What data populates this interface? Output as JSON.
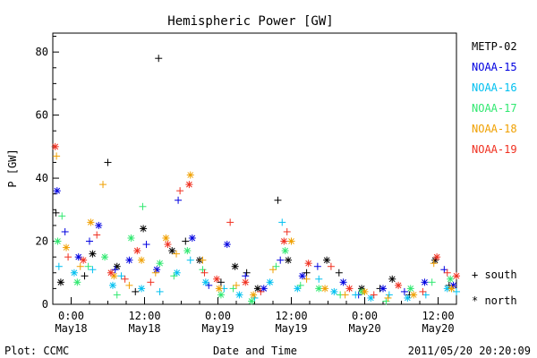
{
  "chart_data": {
    "type": "scatter",
    "title": "Hemispheric Power [GW]",
    "ylabel": "P [GW]",
    "xlabel": "Date and Time",
    "x_unit": "hours since 2011-05-18 00:00 UT",
    "xlim": [
      -3,
      63
    ],
    "ylim": [
      0,
      86
    ],
    "yticks": [
      0,
      20,
      40,
      60,
      80
    ],
    "xticks": [
      {
        "x": 0,
        "time": "0:00",
        "date": "May18"
      },
      {
        "x": 12,
        "time": "12:00",
        "date": "May18"
      },
      {
        "x": 24,
        "time": "0:00",
        "date": "May19"
      },
      {
        "x": 36,
        "time": "12:00",
        "date": "May19"
      },
      {
        "x": 48,
        "time": "0:00",
        "date": "May20"
      },
      {
        "x": 60,
        "time": "12:00",
        "date": "May20"
      }
    ],
    "legend_position": "right",
    "series": [
      {
        "name": "METP-02",
        "color": "#000000",
        "points": [
          [
            -2.5,
            29
          ],
          [
            -1.7,
            7
          ],
          [
            2.2,
            9
          ],
          [
            3.5,
            16
          ],
          [
            6.0,
            45
          ],
          [
            7.5,
            12
          ],
          [
            10.5,
            4
          ],
          [
            11.8,
            24
          ],
          [
            14.3,
            78
          ],
          [
            16.5,
            17
          ],
          [
            18.7,
            20
          ],
          [
            21.0,
            14
          ],
          [
            24.5,
            7
          ],
          [
            26.8,
            12
          ],
          [
            28.7,
            10
          ],
          [
            30.5,
            5
          ],
          [
            33.8,
            33
          ],
          [
            35.5,
            14
          ],
          [
            38.5,
            10
          ],
          [
            41.8,
            14
          ],
          [
            43.8,
            10
          ],
          [
            47.5,
            5
          ],
          [
            50.5,
            5
          ],
          [
            52.5,
            8
          ],
          [
            55.3,
            3
          ],
          [
            59.5,
            14
          ],
          [
            61.8,
            6
          ]
        ]
      },
      {
        "name": "NOAA-15",
        "color": "#0000e0",
        "points": [
          [
            -2.3,
            36
          ],
          [
            -1.0,
            23
          ],
          [
            1.2,
            15
          ],
          [
            3.0,
            20
          ],
          [
            4.5,
            25
          ],
          [
            7.2,
            11
          ],
          [
            9.5,
            14
          ],
          [
            12.3,
            19
          ],
          [
            14.0,
            11
          ],
          [
            17.5,
            33
          ],
          [
            19.8,
            21
          ],
          [
            22.5,
            6
          ],
          [
            25.5,
            19
          ],
          [
            28.5,
            9
          ],
          [
            31.5,
            5
          ],
          [
            34.2,
            14
          ],
          [
            37.8,
            9
          ],
          [
            40.3,
            12
          ],
          [
            44.5,
            7
          ],
          [
            47.0,
            3
          ],
          [
            51.0,
            5
          ],
          [
            54.5,
            4
          ],
          [
            57.8,
            7
          ],
          [
            61.0,
            11
          ],
          [
            62.5,
            6
          ]
        ]
      },
      {
        "name": "NOAA-16",
        "color": "#00c0f0",
        "points": [
          [
            -2.0,
            12
          ],
          [
            0.5,
            10
          ],
          [
            3.5,
            11
          ],
          [
            6.8,
            6
          ],
          [
            8.2,
            9
          ],
          [
            11.5,
            5
          ],
          [
            14.5,
            4
          ],
          [
            17.3,
            10
          ],
          [
            19.5,
            14
          ],
          [
            22.0,
            7
          ],
          [
            25.0,
            5
          ],
          [
            27.5,
            3
          ],
          [
            30.0,
            2
          ],
          [
            32.5,
            7
          ],
          [
            34.5,
            26
          ],
          [
            37.0,
            5
          ],
          [
            40.5,
            8
          ],
          [
            43.0,
            4
          ],
          [
            46.5,
            3
          ],
          [
            49.0,
            2
          ],
          [
            52.0,
            3
          ],
          [
            55.0,
            2
          ],
          [
            58.0,
            3
          ],
          [
            61.5,
            5
          ],
          [
            63.0,
            4
          ]
        ]
      },
      {
        "name": "NOAA-17",
        "color": "#30e870",
        "points": [
          [
            -2.2,
            20
          ],
          [
            -1.5,
            28
          ],
          [
            1.0,
            7
          ],
          [
            2.8,
            12
          ],
          [
            5.5,
            15
          ],
          [
            7.5,
            3
          ],
          [
            9.8,
            21
          ],
          [
            11.7,
            31
          ],
          [
            14.5,
            13
          ],
          [
            16.8,
            9
          ],
          [
            19.0,
            17
          ],
          [
            21.5,
            11
          ],
          [
            24.5,
            3
          ],
          [
            26.5,
            5
          ],
          [
            29.5,
            1
          ],
          [
            33.5,
            12
          ],
          [
            35.0,
            17
          ],
          [
            37.5,
            6
          ],
          [
            40.5,
            5
          ],
          [
            44.0,
            3
          ],
          [
            47.5,
            4
          ],
          [
            51.5,
            1
          ],
          [
            55.5,
            5
          ],
          [
            59.0,
            7
          ],
          [
            62.0,
            8
          ]
        ]
      },
      {
        "name": "NOAA-18",
        "color": "#f0a000",
        "points": [
          [
            -2.4,
            47
          ],
          [
            -0.8,
            18
          ],
          [
            1.5,
            12
          ],
          [
            3.2,
            26
          ],
          [
            5.2,
            38
          ],
          [
            7.0,
            9
          ],
          [
            9.5,
            6
          ],
          [
            11.5,
            14
          ],
          [
            13.8,
            10
          ],
          [
            15.5,
            21
          ],
          [
            17.2,
            16
          ],
          [
            19.5,
            41
          ],
          [
            21.5,
            14
          ],
          [
            24.2,
            5
          ],
          [
            27.0,
            6
          ],
          [
            29.8,
            3
          ],
          [
            33.0,
            11
          ],
          [
            36.0,
            20
          ],
          [
            38.5,
            8
          ],
          [
            41.5,
            5
          ],
          [
            44.8,
            3
          ],
          [
            48.0,
            4
          ],
          [
            51.8,
            2
          ],
          [
            56.0,
            3
          ],
          [
            59.3,
            13
          ],
          [
            62.2,
            5
          ]
        ]
      },
      {
        "name": "NOAA-19",
        "color": "#f03020",
        "points": [
          [
            -2.6,
            50
          ],
          [
            -0.5,
            15
          ],
          [
            2.0,
            14
          ],
          [
            4.2,
            22
          ],
          [
            6.5,
            10
          ],
          [
            8.8,
            8
          ],
          [
            10.8,
            17
          ],
          [
            13.0,
            7
          ],
          [
            15.8,
            19
          ],
          [
            17.8,
            36
          ],
          [
            19.3,
            38
          ],
          [
            21.8,
            10
          ],
          [
            23.8,
            8
          ],
          [
            26.0,
            26
          ],
          [
            28.5,
            7
          ],
          [
            31.0,
            4
          ],
          [
            34.8,
            20
          ],
          [
            35.3,
            23
          ],
          [
            38.8,
            13
          ],
          [
            42.5,
            12
          ],
          [
            45.5,
            5
          ],
          [
            49.5,
            3
          ],
          [
            53.5,
            6
          ],
          [
            57.5,
            4
          ],
          [
            59.8,
            15
          ],
          [
            61.5,
            10
          ],
          [
            63.0,
            9
          ]
        ]
      }
    ],
    "markers_legend": [
      {
        "symbol": "+",
        "label": "south"
      },
      {
        "symbol": "*",
        "label": "north"
      }
    ]
  },
  "footer": {
    "left": "Plot: CCMC",
    "center": "Date and Time",
    "right": "2011/05/20 20:20:09"
  }
}
